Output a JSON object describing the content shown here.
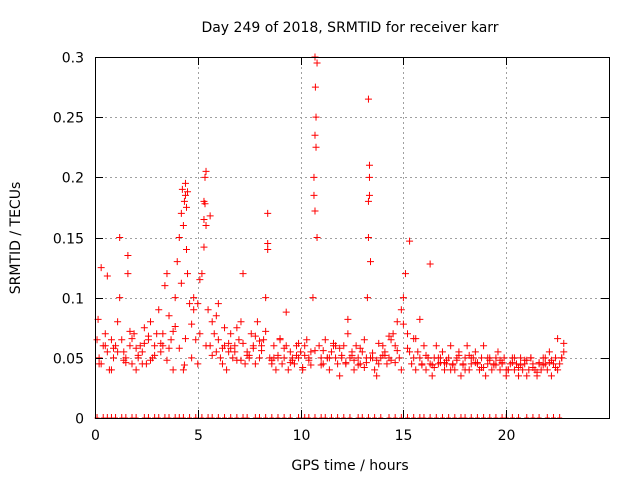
{
  "chart_data": {
    "type": "scatter",
    "title": "Day 249 of 2018, SRMTID for receiver karr",
    "xlabel": "GPS time / hours",
    "ylabel": "SRMTID / TECUs",
    "xlim": [
      0,
      25
    ],
    "ylim": [
      0,
      0.3
    ],
    "x_ticks": [
      0,
      5,
      10,
      15,
      20
    ],
    "x_tick_labels": [
      "0",
      "5",
      "10",
      "15",
      "20"
    ],
    "y_ticks": [
      0,
      0.05,
      0.1,
      0.15,
      0.2,
      0.25,
      0.3
    ],
    "y_tick_labels": [
      "0",
      "0.05",
      "0.1",
      "0.15",
      "0.2",
      "0.25",
      "0.3"
    ],
    "grid": true,
    "marker": "+",
    "color": "#ff0000",
    "series": [
      {
        "name": "SRMTID",
        "x": [
          0.1,
          0.15,
          0.2,
          0.3,
          0.4,
          0.5,
          0.6,
          0.7,
          0.8,
          0.9,
          1.0,
          1.1,
          1.2,
          1.3,
          1.4,
          1.5,
          1.6,
          1.7,
          1.8,
          1.9,
          2.0,
          2.1,
          2.2,
          2.3,
          2.4,
          2.5,
          2.6,
          2.7,
          2.8,
          2.9,
          3.0,
          3.1,
          3.2,
          3.3,
          3.4,
          3.5,
          3.6,
          3.7,
          3.8,
          3.9,
          4.0,
          4.1,
          4.2,
          4.25,
          4.3,
          4.35,
          4.4,
          4.45,
          4.5,
          4.6,
          4.7,
          4.8,
          4.9,
          5.0,
          5.1,
          5.2,
          5.3,
          5.35,
          5.4,
          5.5,
          5.6,
          5.7,
          5.8,
          5.9,
          6.0,
          6.1,
          6.2,
          6.3,
          6.4,
          6.5,
          6.6,
          6.7,
          6.8,
          6.9,
          7.0,
          7.1,
          7.2,
          7.3,
          7.4,
          7.5,
          7.6,
          7.7,
          7.8,
          7.9,
          8.0,
          8.1,
          8.2,
          8.3,
          8.4,
          8.5,
          8.6,
          8.7,
          8.8,
          8.9,
          9.0,
          9.1,
          9.2,
          9.3,
          9.4,
          9.5,
          9.6,
          9.7,
          9.8,
          9.9,
          10.0,
          10.1,
          10.2,
          10.3,
          10.4,
          10.5,
          10.6,
          10.65,
          10.7,
          10.75,
          10.8,
          10.9,
          11.0,
          11.1,
          11.2,
          11.3,
          11.4,
          11.5,
          11.6,
          11.7,
          11.8,
          11.9,
          12.0,
          12.1,
          12.2,
          12.3,
          12.4,
          12.5,
          12.6,
          12.7,
          12.8,
          12.9,
          13.0,
          13.1,
          13.2,
          13.25,
          13.3,
          13.35,
          13.4,
          13.5,
          13.6,
          13.7,
          13.8,
          13.9,
          14.0,
          14.1,
          14.2,
          14.3,
          14.4,
          14.5,
          14.6,
          14.7,
          14.8,
          14.9,
          15.0,
          15.1,
          15.2,
          15.3,
          15.4,
          15.5,
          15.6,
          15.7,
          15.8,
          15.9,
          16.0,
          16.1,
          16.2,
          16.3,
          16.4,
          16.5,
          16.6,
          16.7,
          16.8,
          16.9,
          17.0,
          17.1,
          17.2,
          17.3,
          17.4,
          17.5,
          17.6,
          17.7,
          17.8,
          17.9,
          18.0,
          18.1,
          18.2,
          18.3,
          18.4,
          18.5,
          18.6,
          18.7,
          18.8,
          18.9,
          19.0,
          19.1,
          19.2,
          19.3,
          19.4,
          19.5,
          19.6,
          19.7,
          19.8,
          19.9,
          20.0,
          20.1,
          20.2,
          20.3,
          20.4,
          20.5,
          20.6,
          20.7,
          20.8,
          20.9,
          21.0,
          21.1,
          21.2,
          21.3,
          21.4,
          21.5,
          21.6,
          21.7,
          21.8,
          21.9,
          22.0,
          22.1,
          22.2,
          22.3,
          22.4,
          22.5,
          22.6,
          22.7,
          22.8,
          0.2,
          0.5,
          0.8,
          1.1,
          1.4,
          1.7,
          2.0,
          2.3,
          2.6,
          2.9,
          3.2,
          3.5,
          3.8,
          4.1,
          4.4,
          4.7,
          5.0,
          5.3,
          5.6,
          5.9,
          6.2,
          6.5,
          6.8,
          7.1,
          7.4,
          7.7,
          8.0,
          8.3,
          8.6,
          8.9,
          9.2,
          9.5,
          9.8,
          10.1,
          10.4,
          10.7,
          11.0,
          11.3,
          11.6,
          11.9,
          12.2,
          12.5,
          12.8,
          13.1,
          13.4,
          13.7,
          14.0,
          14.3,
          14.6,
          14.9,
          15.2,
          15.5,
          15.8,
          16.1,
          16.4,
          16.7,
          17.0,
          17.3,
          17.6,
          17.9,
          18.2,
          18.5,
          18.8,
          19.1,
          19.4,
          19.7,
          20.0,
          20.3,
          20.6,
          20.9,
          21.2,
          21.5,
          21.8,
          22.1,
          22.4,
          22.7,
          4.3,
          4.35,
          4.4,
          4.45,
          4.5,
          5.3,
          5.35,
          5.4,
          10.65,
          10.7,
          10.7,
          10.72,
          10.75,
          10.8,
          13.3,
          13.3,
          13.35,
          13.35,
          8.4,
          8.4,
          1.2,
          1.6,
          15.3,
          16.3,
          0.3,
          0.6,
          0.9,
          1.5,
          1.8,
          2.1,
          2.4,
          2.7,
          3.3,
          3.6,
          3.9,
          4.2,
          4.8,
          5.1,
          5.4,
          5.7,
          6.0,
          6.3,
          6.6,
          6.9,
          7.2,
          7.5,
          7.8,
          8.1,
          8.7,
          9.0,
          9.3,
          9.6,
          9.9,
          10.2,
          10.5,
          11.1,
          11.4,
          11.7,
          12.0,
          12.3,
          12.6,
          12.9,
          13.2,
          13.5,
          13.8,
          14.1,
          14.4,
          14.7,
          15.0,
          15.6,
          15.9,
          16.2,
          16.5,
          16.8,
          17.1,
          17.4,
          17.7,
          18.0,
          18.3,
          18.6,
          18.9,
          19.2,
          19.5,
          19.8,
          20.1,
          20.4,
          20.7,
          21.0,
          21.3,
          21.6,
          21.9,
          22.2,
          22.5,
          22.8
        ],
        "y": [
          0.065,
          0.082,
          0.05,
          0.045,
          0.06,
          0.07,
          0.055,
          0.04,
          0.065,
          0.05,
          0.06,
          0.08,
          0.1,
          0.065,
          0.055,
          0.05,
          0.12,
          0.06,
          0.045,
          0.07,
          0.04,
          0.05,
          0.06,
          0.055,
          0.075,
          0.045,
          0.065,
          0.08,
          0.05,
          0.06,
          0.07,
          0.09,
          0.055,
          0.06,
          0.11,
          0.12,
          0.085,
          0.065,
          0.04,
          0.1,
          0.13,
          0.15,
          0.17,
          0.19,
          0.16,
          0.18,
          0.185,
          0.14,
          0.12,
          0.095,
          0.05,
          0.1,
          0.065,
          0.045,
          0.07,
          0.12,
          0.18,
          0.2,
          0.16,
          0.09,
          0.06,
          0.08,
          0.07,
          0.055,
          0.065,
          0.05,
          0.045,
          0.06,
          0.04,
          0.055,
          0.07,
          0.05,
          0.06,
          0.075,
          0.065,
          0.08,
          0.12,
          0.045,
          0.055,
          0.05,
          0.07,
          0.06,
          0.045,
          0.08,
          0.05,
          0.06,
          0.065,
          0.1,
          0.14,
          0.05,
          0.045,
          0.06,
          0.04,
          0.05,
          0.065,
          0.045,
          0.05,
          0.06,
          0.04,
          0.055,
          0.05,
          0.045,
          0.06,
          0.05,
          0.055,
          0.04,
          0.06,
          0.065,
          0.05,
          0.055,
          0.1,
          0.2,
          0.3,
          0.25,
          0.15,
          0.06,
          0.05,
          0.045,
          0.065,
          0.05,
          0.04,
          0.055,
          0.06,
          0.05,
          0.045,
          0.035,
          0.05,
          0.06,
          0.045,
          0.07,
          0.05,
          0.055,
          0.04,
          0.06,
          0.05,
          0.045,
          0.055,
          0.065,
          0.05,
          0.1,
          0.15,
          0.2,
          0.13,
          0.05,
          0.04,
          0.035,
          0.045,
          0.05,
          0.06,
          0.055,
          0.045,
          0.05,
          0.065,
          0.07,
          0.06,
          0.08,
          0.05,
          0.09,
          0.1,
          0.12,
          0.07,
          0.055,
          0.045,
          0.05,
          0.04,
          0.055,
          0.05,
          0.045,
          0.06,
          0.04,
          0.05,
          0.045,
          0.035,
          0.05,
          0.06,
          0.045,
          0.05,
          0.055,
          0.04,
          0.045,
          0.05,
          0.06,
          0.045,
          0.04,
          0.05,
          0.055,
          0.035,
          0.045,
          0.05,
          0.06,
          0.04,
          0.045,
          0.05,
          0.055,
          0.045,
          0.04,
          0.05,
          0.06,
          0.035,
          0.045,
          0.05,
          0.04,
          0.045,
          0.05,
          0.055,
          0.04,
          0.045,
          0.05,
          0.035,
          0.04,
          0.045,
          0.05,
          0.04,
          0.045,
          0.035,
          0.05,
          0.04,
          0.045,
          0.035,
          0.04,
          0.05,
          0.045,
          0.04,
          0.035,
          0.045,
          0.04,
          0.05,
          0.045,
          0.04,
          0.055,
          0.035,
          0.045,
          0.05,
          0.04,
          0.045,
          0.05,
          0.055,
          0.045,
          0.06,
          0.04,
          0.055,
          0.048,
          0.072,
          0.058,
          0.045,
          0.068,
          0.052,
          0.062,
          0.048,
          0.072,
          0.058,
          0.066,
          0.078,
          0.095,
          0.142,
          0.168,
          0.085,
          0.058,
          0.062,
          0.055,
          0.048,
          0.052,
          0.058,
          0.064,
          0.072,
          0.048,
          0.052,
          0.058,
          0.046,
          0.052,
          0.042,
          0.048,
          0.056,
          0.044,
          0.05,
          0.062,
          0.058,
          0.046,
          0.052,
          0.044,
          0.042,
          0.05,
          0.048,
          0.052,
          0.068,
          0.046,
          0.04,
          0.058,
          0.066,
          0.082,
          0.052,
          0.044,
          0.05,
          0.046,
          0.04,
          0.048,
          0.044,
          0.052,
          0.046,
          0.042,
          0.05,
          0.044,
          0.048,
          0.04,
          0.046,
          0.042,
          0.048,
          0.05,
          0.038,
          0.044,
          0.046,
          0.042,
          0.05,
          0.04,
          0.044,
          0.195,
          0.175,
          0.188,
          0.165,
          0.178,
          0.205,
          0.185,
          0.172,
          0.235,
          0.275,
          0.225,
          0.295,
          0.265,
          0.18,
          0.21,
          0.185,
          0.17,
          0.145,
          0.15,
          0.135,
          0.147,
          0.128,
          0.125,
          0.118,
          0.058,
          0.046,
          0.066,
          0.052,
          0.062,
          0.048,
          0.07,
          0.058,
          0.076,
          0.112,
          0.09,
          0.115,
          0.06,
          0.052,
          0.095,
          0.075,
          0.058,
          0.048,
          0.062,
          0.052,
          0.068,
          0.056,
          0.05,
          0.066,
          0.088,
          0.048,
          0.062,
          0.052,
          0.044,
          0.056,
          0.05,
          0.06,
          0.052,
          0.082,
          0.048,
          0.058,
          0.046,
          0.054,
          0.062,
          0.052,
          0.048,
          0.056,
          0.078,
          0.066,
          0.044,
          0.05,
          0.042,
          0.046,
          0.048,
          0.044,
          0.052,
          0.04,
          0.05,
          0.046,
          0.042,
          0.048,
          0.044,
          0.046,
          0.04,
          0.05,
          0.044,
          0.048,
          0.042,
          0.046,
          0.05,
          0.048,
          0.066,
          0.062
        ]
      }
    ],
    "zero_values_x": [
      0.1,
      0.4,
      0.6,
      0.8,
      1.0,
      1.3,
      1.5,
      1.8,
      2.0,
      2.4,
      2.6,
      2.9,
      3.1,
      3.4,
      3.6,
      3.9,
      4.1,
      4.3,
      4.6,
      4.9,
      5.2,
      5.5,
      5.7,
      6.0,
      6.3,
      6.6,
      6.9,
      7.2,
      7.4,
      7.8,
      8.0,
      8.3,
      8.6,
      8.9,
      9.2,
      9.5,
      9.9,
      10.2,
      10.4,
      10.7,
      11.0,
      11.2,
      11.5,
      11.8,
      12.1,
      12.4,
      12.8,
      13.0,
      13.3,
      13.6,
      13.9,
      14.3,
      14.6,
      14.9,
      15.2,
      15.5,
      15.8,
      16.0,
      16.3,
      16.6,
      16.9,
      17.2,
      17.5,
      17.8,
      18.0,
      18.3,
      18.6,
      18.9,
      19.2,
      19.5,
      19.8,
      20.0,
      20.3,
      20.6,
      21.0,
      21.3,
      21.6,
      22.0,
      22.3,
      22.6
    ]
  }
}
